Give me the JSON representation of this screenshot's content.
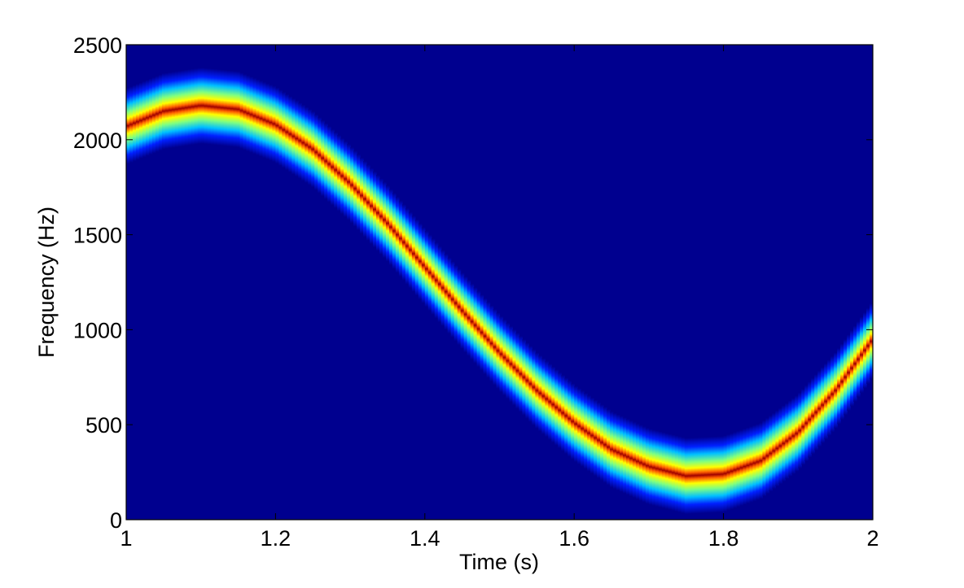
{
  "chart_data": {
    "type": "heatmap",
    "title": "",
    "xlabel": "Time (s)",
    "ylabel": "Frequency (Hz)",
    "xlim": [
      1,
      2
    ],
    "ylim": [
      0,
      2500
    ],
    "x_ticks": [
      1,
      1.2,
      1.4,
      1.6,
      1.8,
      2
    ],
    "x_tick_labels": [
      "1",
      "1.2",
      "1.4",
      "1.6",
      "1.8",
      "2"
    ],
    "y_ticks": [
      0,
      500,
      1000,
      1500,
      2000,
      2500
    ],
    "y_tick_labels": [
      "0",
      "500",
      "1000",
      "1500",
      "2000",
      "2500"
    ],
    "grid": false,
    "colormap": "jet",
    "background_color": "#00008f",
    "ridge": {
      "description": "sinusoidally varying frequency track",
      "t": [
        1.0,
        1.05,
        1.1,
        1.15,
        1.2,
        1.25,
        1.3,
        1.35,
        1.4,
        1.45,
        1.5,
        1.55,
        1.6,
        1.65,
        1.7,
        1.75,
        1.8,
        1.85,
        1.9,
        1.95,
        2.0
      ],
      "f": [
        2070,
        2150,
        2180,
        2160,
        2080,
        1950,
        1770,
        1560,
        1330,
        1100,
        880,
        680,
        510,
        370,
        280,
        230,
        240,
        310,
        460,
        680,
        950
      ],
      "band_half_width_hz": 200
    }
  }
}
